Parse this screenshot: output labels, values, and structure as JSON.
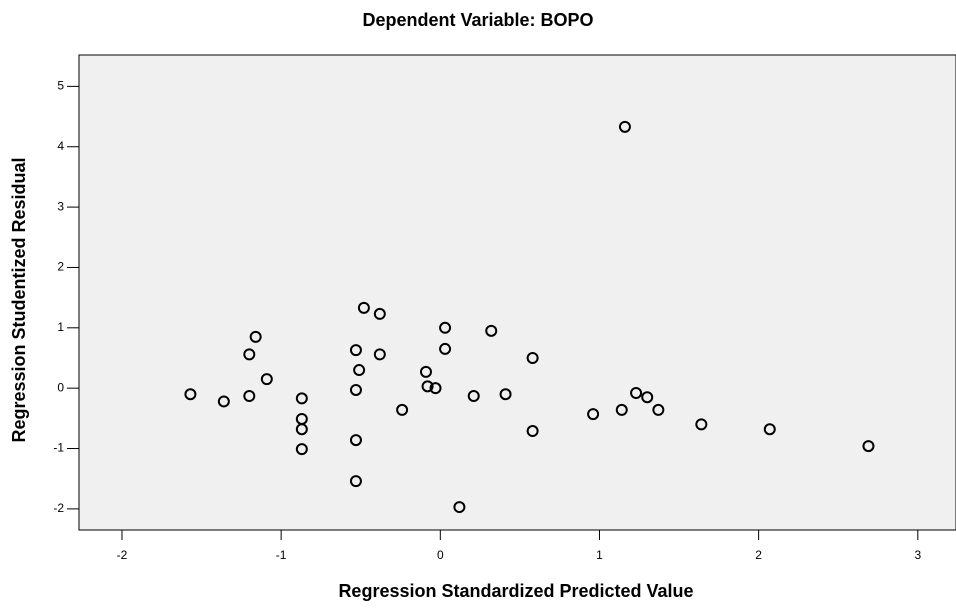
{
  "chart_data": {
    "type": "scatter",
    "title": "Dependent Variable: BOPO",
    "x_label": "Regression Standardized Predicted Value",
    "y_label": "Regression Studentized Residual",
    "x": [
      -1.57,
      -1.36,
      -1.2,
      -1.16,
      -1.2,
      -1.09,
      -0.87,
      -0.87,
      -0.87,
      -0.87,
      -0.53,
      -0.51,
      -0.53,
      -0.53,
      -0.53,
      -0.48,
      -0.38,
      -0.38,
      -0.24,
      -0.09,
      -0.08,
      -0.03,
      0.03,
      0.03,
      0.12,
      0.21,
      0.32,
      0.41,
      0.58,
      0.58,
      0.96,
      1.14,
      1.16,
      1.23,
      1.3,
      1.37,
      1.64,
      2.07,
      2.69
    ],
    "values": [
      -0.1,
      -0.22,
      0.56,
      0.85,
      -0.13,
      0.15,
      -0.17,
      -0.51,
      -0.68,
      -1.01,
      0.63,
      0.3,
      -0.03,
      -0.86,
      -1.54,
      1.33,
      1.23,
      0.56,
      -0.36,
      0.27,
      0.03,
      0.0,
      1.0,
      0.65,
      -1.97,
      -0.13,
      0.95,
      -0.1,
      0.5,
      -0.71,
      -0.43,
      -0.36,
      4.33,
      -0.08,
      -0.15,
      -0.36,
      -0.6,
      -0.68,
      -0.96
    ],
    "color": "#000000",
    "xlim": [
      -2.27,
      3.24
    ],
    "ylim": [
      -2.35,
      5.52
    ],
    "xticks": [
      -2,
      -1,
      0,
      1,
      2,
      3
    ],
    "yticks": [
      -2,
      -1,
      0,
      1,
      2,
      3,
      4,
      5
    ]
  }
}
